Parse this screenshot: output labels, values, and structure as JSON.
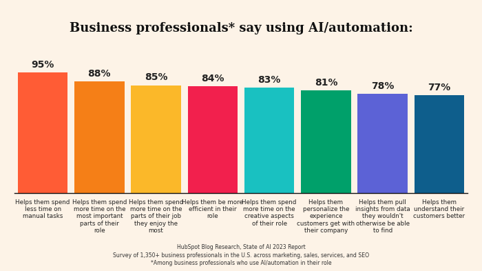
{
  "chart_data": {
    "type": "bar",
    "title": "Business professionals* say using AI/automation:",
    "categories": [
      "Helps them spend less time on manual tasks",
      "Helps them spend more time on the most important parts of their role",
      "Helps them spend more time on the parts of their job they enjoy the most",
      "Helps them be more efficient in their role",
      "Helps them spend more time on the creative aspects of their role",
      "Helps them personalize the experience customers get with their company",
      "Helps them pull insights from data they wouldn't otherwise be able to find",
      "Helps them understand their customers better"
    ],
    "values": [
      95,
      88,
      85,
      84,
      83,
      81,
      78,
      77
    ],
    "value_labels": [
      "95%",
      "88%",
      "85%",
      "84%",
      "83%",
      "81%",
      "78%",
      "77%"
    ],
    "colors": [
      "#FF5C35",
      "#F57F17",
      "#FBB829",
      "#F2204D",
      "#19C1C1",
      "#00A06A",
      "#5C62D6",
      "#0E5E8C"
    ],
    "ylim": [
      0,
      100
    ],
    "data_labels": true,
    "tick_labels": "x",
    "grid": false,
    "footnotes": [
      "HubSpot Blog Research, State of AI 2023 Report",
      "Survey of 1,350+ business professionals in the U.S. across marketing, sales, services, and SEO",
      "*Among business professionals who use AI/automation in their role"
    ]
  }
}
